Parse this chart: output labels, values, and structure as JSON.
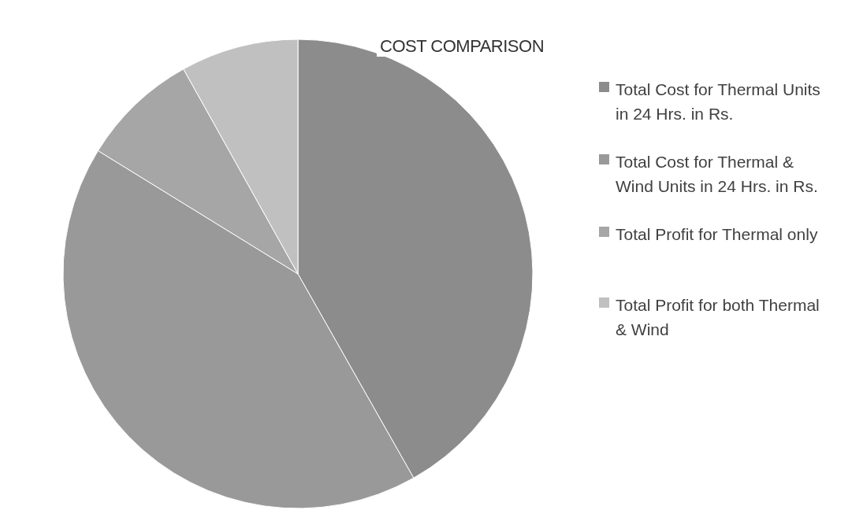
{
  "chart_data": {
    "type": "pie",
    "title": "COST COMPARISON",
    "categories": [
      "Total Cost for Thermal Units in 24 Hrs.  in Rs.",
      "Total Cost for Thermal  & Wind  Units in 24 Hrs. in Rs.",
      "Total  Profit for  Thermal only",
      "Total  Profit for both Thermal &  Wind"
    ],
    "values": [
      41.8,
      42,
      8.1,
      8.1
    ],
    "colors": [
      "#8c8c8c",
      "#999999",
      "#a6a6a6",
      "#c0c0c0"
    ],
    "legend": "right"
  }
}
